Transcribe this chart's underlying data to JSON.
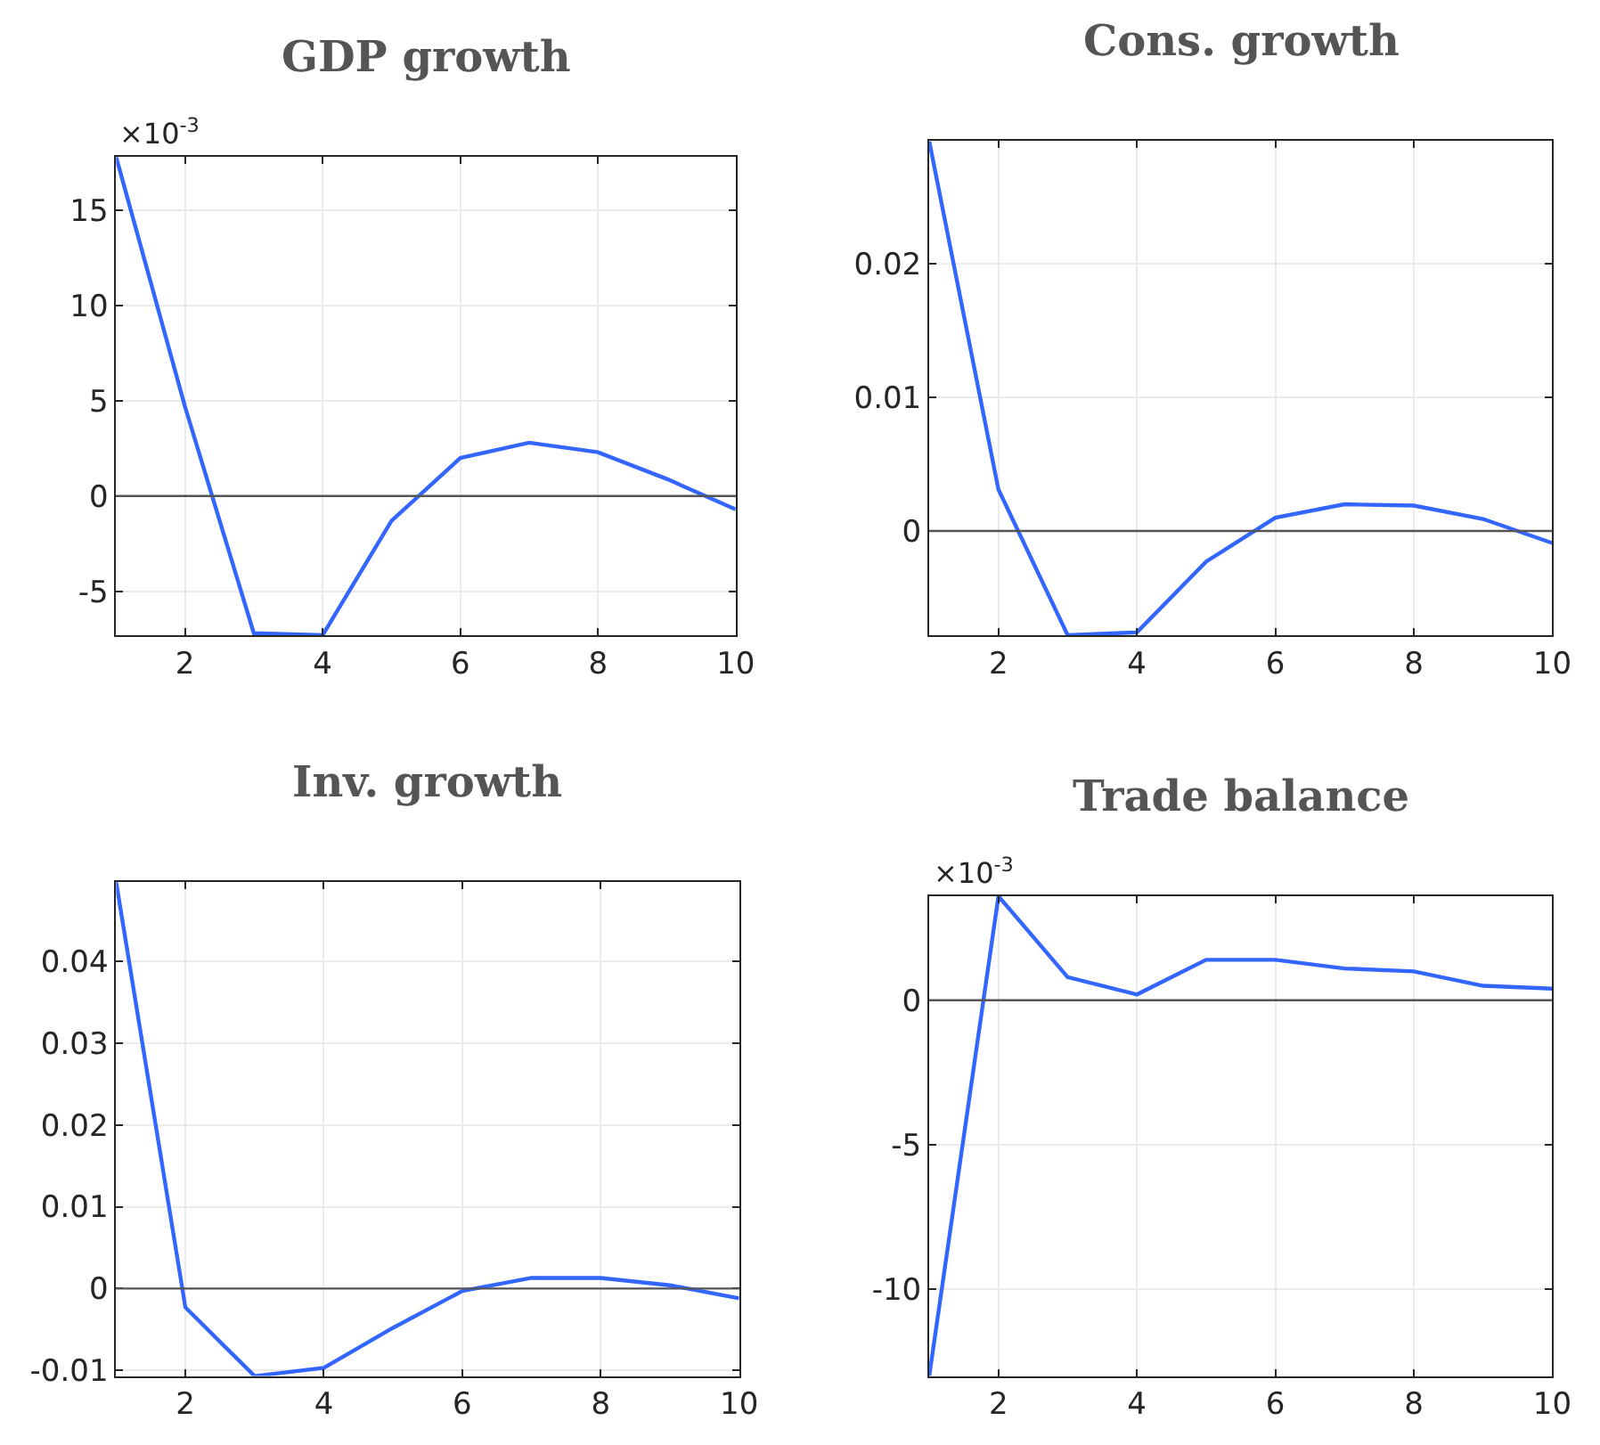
{
  "chart_data": [
    {
      "type": "line",
      "title": "GDP growth",
      "annotations": [
        "×10$^{-3}$"
      ],
      "x": [
        1,
        2,
        3,
        4,
        5,
        6,
        7,
        8,
        9,
        10
      ],
      "series": [
        {
          "color": "#3366ff",
          "values": [
            17.8,
            4.7,
            -7.2,
            -7.3,
            -1.3,
            2.0,
            2.8,
            2.3,
            0.9,
            -0.7
          ]
        }
      ],
      "xlim": [
        1,
        10
      ],
      "xticks": [
        2,
        4,
        6,
        8,
        10
      ],
      "ylim": [
        -7.3,
        17.8
      ],
      "yticks": [
        -5,
        0,
        5,
        10,
        15
      ],
      "grid": true,
      "marker": "none",
      "line_style": "solid",
      "ref_lines": [
        {
          "axis": "y",
          "value": 0,
          "color": "#555555"
        }
      ]
    },
    {
      "type": "line",
      "title": "Cons. growth",
      "x": [
        1,
        2,
        3,
        4,
        5,
        6,
        7,
        8,
        9,
        10
      ],
      "series": [
        {
          "color": "#3366ff",
          "values": [
            0.0292,
            0.0031,
            -0.0078,
            -0.0076,
            -0.0023,
            0.001,
            0.002,
            0.0019,
            0.0009,
            -0.0009
          ]
        }
      ],
      "xlim": [
        1,
        10
      ],
      "xticks": [
        2,
        4,
        6,
        8,
        10
      ],
      "ylim": [
        -0.0078,
        0.0292
      ],
      "yticks": [
        0,
        0.01,
        0.02
      ],
      "grid": true,
      "marker": "none",
      "line_style": "solid",
      "ref_lines": [
        {
          "axis": "y",
          "value": 0,
          "color": "#555555"
        }
      ]
    },
    {
      "type": "line",
      "title": "Inv. growth",
      "x": [
        1,
        2,
        3,
        4,
        5,
        6,
        7,
        8,
        9,
        10
      ],
      "series": [
        {
          "color": "#3366ff",
          "values": [
            0.0497,
            -0.0023,
            -0.0107,
            -0.0097,
            -0.0048,
            -0.0003,
            0.0013,
            0.0013,
            0.0004,
            -0.0012
          ]
        }
      ],
      "xlim": [
        1,
        10
      ],
      "xticks": [
        2,
        4,
        6,
        8,
        10
      ],
      "ylim": [
        -0.0107,
        0.0497
      ],
      "yticks": [
        -0.01,
        0,
        0.01,
        0.02,
        0.03,
        0.04
      ],
      "grid": true,
      "marker": "none",
      "line_style": "solid",
      "ref_lines": [
        {
          "axis": "y",
          "value": 0,
          "color": "#555555"
        }
      ]
    },
    {
      "type": "line",
      "title": "Trade balance",
      "annotations": [
        "×10$^{-3}$"
      ],
      "x": [
        1,
        2,
        3,
        4,
        5,
        6,
        7,
        8,
        9,
        10
      ],
      "series": [
        {
          "color": "#3366ff",
          "values": [
            -13.0,
            3.6,
            0.8,
            0.2,
            1.4,
            1.4,
            1.1,
            1.0,
            0.5,
            0.4
          ]
        }
      ],
      "xlim": [
        1,
        10
      ],
      "xticks": [
        2,
        4,
        6,
        8,
        10
      ],
      "ylim": [
        -13.0,
        3.6
      ],
      "yticks": [
        -10,
        -5,
        0
      ],
      "grid": true,
      "marker": "none",
      "line_style": "solid",
      "ref_lines": [
        {
          "axis": "y",
          "value": 0,
          "color": "#555555"
        }
      ]
    }
  ]
}
